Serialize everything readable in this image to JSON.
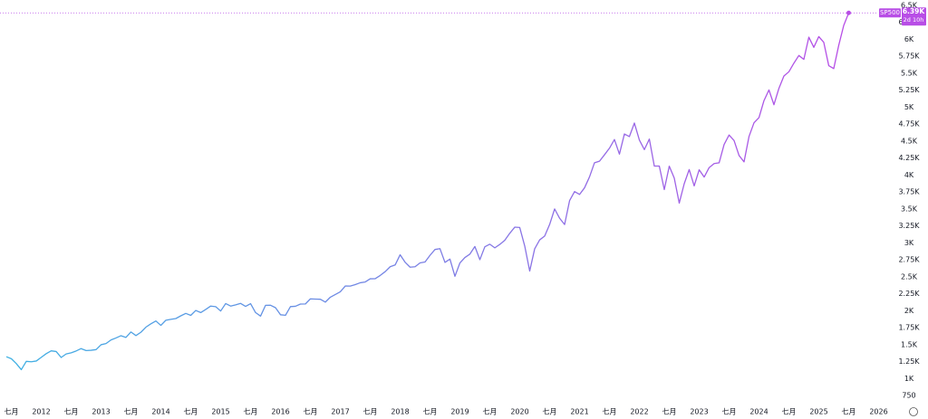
{
  "chart_data": {
    "type": "line",
    "x": [
      "2011-06",
      "2011-07",
      "2011-08",
      "2011-09",
      "2011-10",
      "2011-11",
      "2011-12",
      "2012-01",
      "2012-02",
      "2012-03",
      "2012-04",
      "2012-05",
      "2012-06",
      "2012-07",
      "2012-08",
      "2012-09",
      "2012-10",
      "2012-11",
      "2012-12",
      "2013-01",
      "2013-02",
      "2013-03",
      "2013-04",
      "2013-05",
      "2013-06",
      "2013-07",
      "2013-08",
      "2013-09",
      "2013-10",
      "2013-11",
      "2013-12",
      "2014-01",
      "2014-02",
      "2014-03",
      "2014-04",
      "2014-05",
      "2014-06",
      "2014-07",
      "2014-08",
      "2014-09",
      "2014-10",
      "2014-11",
      "2014-12",
      "2015-01",
      "2015-02",
      "2015-03",
      "2015-04",
      "2015-05",
      "2015-06",
      "2015-07",
      "2015-08",
      "2015-09",
      "2015-10",
      "2015-11",
      "2015-12",
      "2016-01",
      "2016-02",
      "2016-03",
      "2016-04",
      "2016-05",
      "2016-06",
      "2016-07",
      "2016-08",
      "2016-09",
      "2016-10",
      "2016-11",
      "2016-12",
      "2017-01",
      "2017-02",
      "2017-03",
      "2017-04",
      "2017-05",
      "2017-06",
      "2017-07",
      "2017-08",
      "2017-09",
      "2017-10",
      "2017-11",
      "2017-12",
      "2018-01",
      "2018-02",
      "2018-03",
      "2018-04",
      "2018-05",
      "2018-06",
      "2018-07",
      "2018-08",
      "2018-09",
      "2018-10",
      "2018-11",
      "2018-12",
      "2019-01",
      "2019-02",
      "2019-03",
      "2019-04",
      "2019-05",
      "2019-06",
      "2019-07",
      "2019-08",
      "2019-09",
      "2019-10",
      "2019-11",
      "2019-12",
      "2020-01",
      "2020-02",
      "2020-03",
      "2020-04",
      "2020-05",
      "2020-06",
      "2020-07",
      "2020-08",
      "2020-09",
      "2020-10",
      "2020-11",
      "2020-12",
      "2021-01",
      "2021-02",
      "2021-03",
      "2021-04",
      "2021-05",
      "2021-06",
      "2021-07",
      "2021-08",
      "2021-09",
      "2021-10",
      "2021-11",
      "2021-12",
      "2022-01",
      "2022-02",
      "2022-03",
      "2022-04",
      "2022-05",
      "2022-06",
      "2022-07",
      "2022-08",
      "2022-09",
      "2022-10",
      "2022-11",
      "2022-12",
      "2023-01",
      "2023-02",
      "2023-03",
      "2023-04",
      "2023-05",
      "2023-06",
      "2023-07",
      "2023-08",
      "2023-09",
      "2023-10",
      "2023-11",
      "2023-12",
      "2024-01",
      "2024-02",
      "2024-03",
      "2024-04",
      "2024-05",
      "2024-06",
      "2024-07",
      "2024-08",
      "2024-09",
      "2024-10",
      "2024-11",
      "2024-12",
      "2025-01",
      "2025-02",
      "2025-03",
      "2025-04",
      "2025-05",
      "2025-06",
      "2025-07"
    ],
    "series": [
      {
        "name": "SP500",
        "colors": [
          "#3fb1e3",
          "#b84ee6"
        ],
        "values": [
          1321,
          1292,
          1219,
          1131,
          1253,
          1247,
          1258,
          1312,
          1366,
          1408,
          1398,
          1310,
          1362,
          1379,
          1406,
          1441,
          1412,
          1416,
          1426,
          1498,
          1515,
          1569,
          1598,
          1631,
          1606,
          1686,
          1633,
          1682,
          1757,
          1806,
          1848,
          1783,
          1859,
          1872,
          1884,
          1924,
          1960,
          1931,
          2003,
          1972,
          2018,
          2068,
          2059,
          1995,
          2105,
          2068,
          2086,
          2107,
          2063,
          2104,
          1972,
          1920,
          2079,
          2080,
          2044,
          1940,
          1932,
          2060,
          2065,
          2097,
          2099,
          2174,
          2171,
          2168,
          2126,
          2199,
          2239,
          2279,
          2364,
          2363,
          2384,
          2412,
          2423,
          2470,
          2472,
          2519,
          2575,
          2648,
          2674,
          2824,
          2714,
          2641,
          2648,
          2705,
          2718,
          2816,
          2902,
          2914,
          2712,
          2760,
          2507,
          2704,
          2784,
          2834,
          2946,
          2752,
          2942,
          2980,
          2926,
          2977,
          3038,
          3141,
          3231,
          3226,
          2954,
          2585,
          2912,
          3044,
          3100,
          3271,
          3500,
          3363,
          3270,
          3622,
          3756,
          3714,
          3811,
          3973,
          4181,
          4204,
          4298,
          4395,
          4523,
          4308,
          4605,
          4567,
          4766,
          4516,
          4374,
          4530,
          4132,
          4132,
          3785,
          4130,
          3955,
          3586,
          3872,
          4080,
          3840,
          4077,
          3970,
          4109,
          4169,
          4180,
          4450,
          4589,
          4508,
          4288,
          4194,
          4568,
          4770,
          4846,
          5096,
          5254,
          5036,
          5278,
          5460,
          5522,
          5648,
          5762,
          5705,
          6032,
          5882,
          6041,
          5955,
          5612,
          5569,
          5912,
          6205,
          6390
        ],
        "last_value_label": "6.39K",
        "countdown": "2d 10h"
      }
    ],
    "ylim": [
      750,
      6500
    ],
    "yticks": [
      {
        "value": 6500,
        "label": "6.5K"
      },
      {
        "value": 6250,
        "label": "6.25K"
      },
      {
        "value": 6000,
        "label": "6K"
      },
      {
        "value": 5750,
        "label": "5.75K"
      },
      {
        "value": 5500,
        "label": "5.5K"
      },
      {
        "value": 5250,
        "label": "5.25K"
      },
      {
        "value": 5000,
        "label": "5K"
      },
      {
        "value": 4750,
        "label": "4.75K"
      },
      {
        "value": 4500,
        "label": "4.5K"
      },
      {
        "value": 4250,
        "label": "4.25K"
      },
      {
        "value": 4000,
        "label": "4K"
      },
      {
        "value": 3750,
        "label": "3.75K"
      },
      {
        "value": 3500,
        "label": "3.5K"
      },
      {
        "value": 3250,
        "label": "3.25K"
      },
      {
        "value": 3000,
        "label": "3K"
      },
      {
        "value": 2750,
        "label": "2.75K"
      },
      {
        "value": 2500,
        "label": "2.5K"
      },
      {
        "value": 2250,
        "label": "2.25K"
      },
      {
        "value": 2000,
        "label": "2K"
      },
      {
        "value": 1750,
        "label": "1.75K"
      },
      {
        "value": 1500,
        "label": "1.5K"
      },
      {
        "value": 1250,
        "label": "1.25K"
      },
      {
        "value": 1000,
        "label": "1K"
      },
      750
    ],
    "xticks": [
      {
        "value": "2011-07",
        "label": "七月"
      },
      {
        "value": "2012-01",
        "label": "2012"
      },
      {
        "value": "2012-07",
        "label": "七月"
      },
      {
        "value": "2013-01",
        "label": "2013"
      },
      {
        "value": "2013-07",
        "label": "七月"
      },
      {
        "value": "2014-01",
        "label": "2014"
      },
      {
        "value": "2014-07",
        "label": "七月"
      },
      {
        "value": "2015-01",
        "label": "2015"
      },
      {
        "value": "2015-07",
        "label": "七月"
      },
      {
        "value": "2016-01",
        "label": "2016"
      },
      {
        "value": "2016-07",
        "label": "七月"
      },
      {
        "value": "2017-01",
        "label": "2017"
      },
      {
        "value": "2017-07",
        "label": "七月"
      },
      {
        "value": "2018-01",
        "label": "2018"
      },
      {
        "value": "2018-07",
        "label": "七月"
      },
      {
        "value": "2019-01",
        "label": "2019"
      },
      {
        "value": "2019-07",
        "label": "七月"
      },
      {
        "value": "2020-01",
        "label": "2020"
      },
      {
        "value": "2020-07",
        "label": "七月"
      },
      {
        "value": "2021-01",
        "label": "2021"
      },
      {
        "value": "2021-07",
        "label": "七月"
      },
      {
        "value": "2022-01",
        "label": "2022"
      },
      {
        "value": "2022-07",
        "label": "七月"
      },
      {
        "value": "2023-01",
        "label": "2023"
      },
      {
        "value": "2023-07",
        "label": "七月"
      },
      {
        "value": "2024-01",
        "label": "2024"
      },
      {
        "value": "2024-07",
        "label": "七月"
      },
      {
        "value": "2025-01",
        "label": "2025"
      },
      {
        "value": "2025-07",
        "label": "七月"
      },
      {
        "value": "2026-01",
        "label": "2026"
      }
    ],
    "grid": false
  }
}
